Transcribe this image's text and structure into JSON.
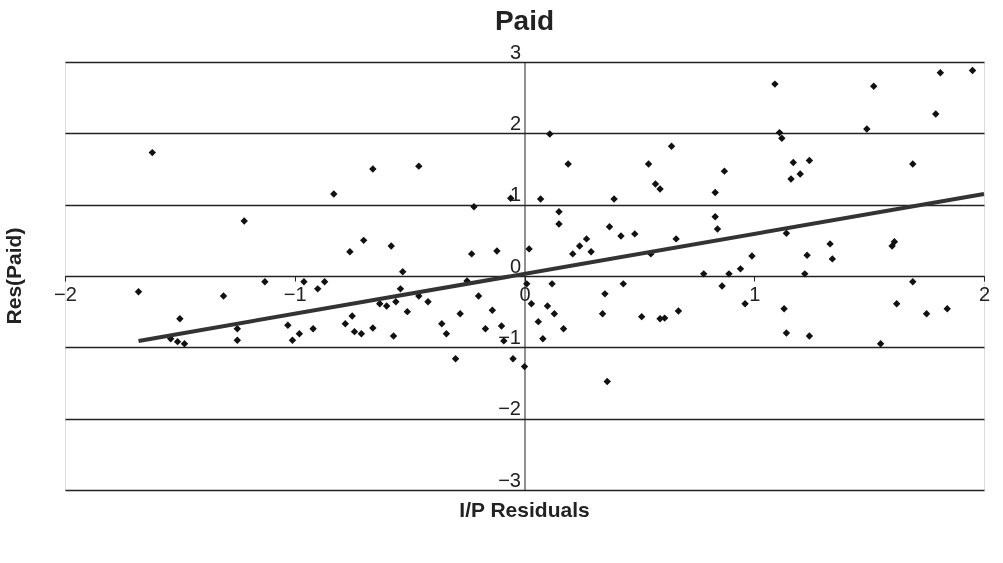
{
  "chart_data": {
    "type": "scatter",
    "title": "Paid",
    "xlabel": "I/P Residuals",
    "ylabel": "Res(Paid)",
    "xlim": [
      -2,
      2
    ],
    "ylim": [
      -3,
      3
    ],
    "xticks": [
      -2,
      -1,
      0,
      1,
      2
    ],
    "yticks": [
      -3,
      -2,
      -1,
      0,
      1,
      2,
      3
    ],
    "grid": "y",
    "series": [
      {
        "marker": "diamond",
        "color": "#111111",
        "x": [
          -1.68,
          -1.62,
          -1.5,
          -1.54,
          -1.51,
          -1.48,
          -1.31,
          -1.25,
          -1.25,
          -1.22,
          -1.13,
          -1.03,
          -1.01,
          -0.98,
          -0.96,
          -0.92,
          -0.9,
          -0.87,
          -0.83,
          -0.78,
          -0.75,
          -0.74,
          -0.71,
          -0.76,
          -0.7,
          -0.66,
          -0.66,
          -0.63,
          -0.6,
          -0.58,
          -0.57,
          -0.56,
          -0.54,
          -0.53,
          -0.51,
          -0.46,
          -0.46,
          -0.42,
          -0.36,
          -0.34,
          -0.3,
          -0.28,
          -0.22,
          -0.23,
          -0.25,
          -0.2,
          -0.17,
          -0.14,
          -0.12,
          -0.1,
          -0.06,
          -0.09,
          -0.05,
          0.0,
          0.02,
          0.01,
          0.03,
          0.06,
          0.07,
          0.08,
          0.1,
          0.12,
          0.11,
          0.13,
          0.15,
          0.15,
          0.17,
          0.19,
          0.21,
          0.24,
          0.27,
          0.29,
          0.34,
          0.35,
          0.36,
          0.37,
          0.39,
          0.42,
          0.43,
          0.48,
          0.51,
          0.54,
          0.55,
          0.57,
          0.59,
          0.59,
          0.61,
          0.64,
          0.66,
          0.67,
          0.78,
          0.83,
          0.87,
          0.83,
          0.84,
          0.86,
          0.89,
          0.94,
          0.96,
          0.99,
          1.09,
          1.11,
          1.12,
          1.17,
          1.24,
          1.16,
          1.2,
          1.14,
          1.13,
          1.14,
          1.22,
          1.23,
          1.24,
          1.33,
          1.34,
          1.52,
          1.49,
          1.6,
          1.61,
          1.55,
          1.69,
          1.69,
          1.79,
          1.81,
          1.95,
          1.62,
          1.75,
          1.84
        ],
        "values": [
          -0.22,
          1.73,
          -0.6,
          -0.88,
          -0.92,
          -0.95,
          -0.28,
          -0.74,
          -0.9,
          0.77,
          -0.08,
          -0.69,
          -0.9,
          -0.81,
          -0.08,
          -0.74,
          -0.18,
          -0.08,
          1.15,
          -0.67,
          -0.56,
          -0.78,
          -0.81,
          0.34,
          0.5,
          1.5,
          -0.73,
          -0.39,
          -0.42,
          0.42,
          -0.84,
          -0.36,
          -0.18,
          0.06,
          -0.5,
          1.54,
          -0.28,
          -0.36,
          -0.67,
          -0.81,
          -1.16,
          -0.53,
          0.97,
          0.31,
          -0.07,
          -0.28,
          -0.74,
          -0.48,
          0.35,
          -0.7,
          1.09,
          -0.91,
          -1.16,
          -1.27,
          0.38,
          -0.11,
          -0.39,
          -0.64,
          1.08,
          -0.88,
          -0.42,
          -0.11,
          1.99,
          -0.53,
          0.9,
          0.73,
          -0.74,
          1.57,
          0.31,
          0.42,
          0.52,
          0.34,
          -0.53,
          -0.25,
          -1.48,
          0.69,
          1.08,
          0.56,
          -0.11,
          0.59,
          -0.57,
          1.57,
          0.31,
          1.29,
          1.22,
          -0.6,
          -0.59,
          1.82,
          0.52,
          -0.49,
          0.03,
          1.17,
          1.47,
          0.83,
          0.66,
          -0.14,
          0.03,
          0.1,
          -0.39,
          0.28,
          2.69,
          2.01,
          1.93,
          1.59,
          1.62,
          1.36,
          1.43,
          0.6,
          -0.46,
          -0.8,
          0.03,
          0.29,
          -0.84,
          0.45,
          0.24,
          2.66,
          2.06,
          0.42,
          0.48,
          -0.95,
          1.57,
          -0.08,
          2.27,
          2.85,
          2.88,
          -0.39,
          -0.53,
          -0.46
        ]
      },
      {
        "type": "line",
        "color": "#333333",
        "line_style": "solid",
        "x": [
          -1.68,
          2
        ],
        "values": [
          -0.91,
          1.15
        ]
      }
    ]
  }
}
